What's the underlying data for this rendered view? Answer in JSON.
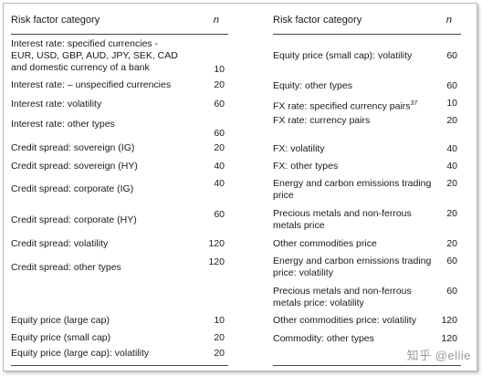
{
  "left": {
    "header": {
      "category": "Risk factor category",
      "n": "n"
    },
    "rows": [
      {
        "label": "Interest rate: specified currencies - EUR, USD, GBP, AUD, JPY, SEK, CAD and domestic currency of a bank",
        "value": "10"
      },
      {
        "label": "Interest rate: – unspecified currencies",
        "value": "20"
      },
      {
        "label": "Interest rate: volatility",
        "value": "60"
      },
      {
        "label": "Interest rate: other types",
        "value": "60"
      },
      {
        "label": "Credit spread: sovereign (IG)",
        "value": "20"
      },
      {
        "label": "Credit spread: sovereign (HY)",
        "value": "40"
      },
      {
        "label": "Credit spread: corporate (IG)",
        "value": "40"
      },
      {
        "label": "Credit spread: corporate (HY)",
        "value": "60"
      },
      {
        "label": "Credit spread: volatility",
        "value": "120"
      },
      {
        "label": "Credit spread: other types",
        "value": "120"
      },
      {
        "label": "Equity price (large cap)",
        "value": "10"
      },
      {
        "label": "Equity price (small cap)",
        "value": "20"
      },
      {
        "label": "Equity price (large cap): volatility",
        "value": "20"
      }
    ]
  },
  "right": {
    "header": {
      "category": "Risk factor category",
      "n": "n"
    },
    "rows": [
      {
        "label": "Equity price (small cap): volatility",
        "value": "60"
      },
      {
        "label": "Equity: other types",
        "value": "60"
      },
      {
        "label": "FX rate: specified currency pairs",
        "sup": "37",
        "value": "10"
      },
      {
        "label": "FX rate: currency pairs",
        "value": "20"
      },
      {
        "label": "FX: volatility",
        "value": "40"
      },
      {
        "label": "FX: other types",
        "value": "40"
      },
      {
        "label": "Energy and carbon emissions trading price",
        "value": "20"
      },
      {
        "label": "Precious metals and non-ferrous metals price",
        "value": "20"
      },
      {
        "label": "Other commodities price",
        "value": "20"
      },
      {
        "label": "Energy and carbon emissions trading price: volatility",
        "value": "60"
      },
      {
        "label": "Precious metals and non-ferrous metals price: volatility",
        "value": "60"
      },
      {
        "label": "Other commodities price: volatility",
        "value": "120"
      },
      {
        "label": "Commodity: other types",
        "value": "120"
      }
    ]
  },
  "watermark": "知乎 @ellie"
}
